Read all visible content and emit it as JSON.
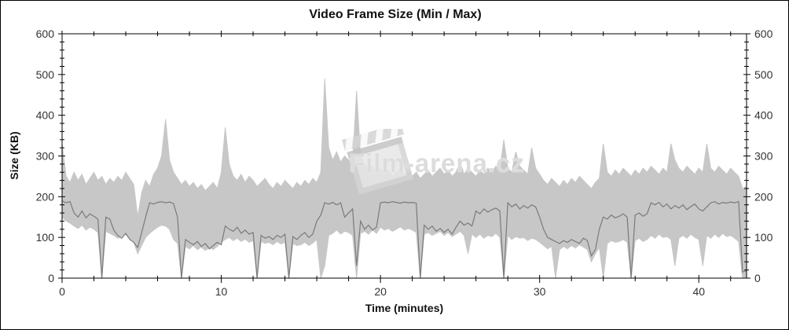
{
  "watermark": {
    "text": "Film-arena.cz"
  },
  "chart_data": {
    "type": "area",
    "title": "Video Frame Size (Min / Max)",
    "xlabel": "Time (minutes)",
    "ylabel": "Size (KB)",
    "xlim": [
      0,
      43
    ],
    "ylim": [
      0,
      600
    ],
    "x_major_tick_step": 10,
    "x_minor_tick_step": 2,
    "y_major_tick_step": 100,
    "y_minor_tick_step": 20,
    "x_tick_labels": [
      "0",
      "10",
      "20",
      "30",
      "40"
    ],
    "y_tick_labels_left": [
      "0",
      "100",
      "200",
      "300",
      "400",
      "500",
      "600"
    ],
    "y_tick_labels_right": [
      "0",
      "100",
      "200",
      "300",
      "400",
      "500",
      "600"
    ],
    "grid": "off",
    "legend": "none",
    "colors": {
      "max_band": "#c7c7c7",
      "min_line": "#7a7a7a",
      "axis": "#000000",
      "tick_text": "#333333",
      "background": "#ffffff",
      "watermark": "#dcdcdc"
    },
    "x_start": 0,
    "x_step": 0.25,
    "series": [
      {
        "name": "Max frame size",
        "type": "band",
        "upper": [
          330,
          250,
          235,
          260,
          240,
          255,
          230,
          245,
          260,
          240,
          250,
          230,
          245,
          235,
          250,
          240,
          260,
          245,
          230,
          150,
          210,
          240,
          225,
          255,
          270,
          300,
          390,
          290,
          260,
          245,
          230,
          240,
          225,
          235,
          220,
          230,
          215,
          225,
          235,
          220,
          260,
          370,
          280,
          250,
          240,
          255,
          235,
          250,
          240,
          225,
          235,
          245,
          230,
          220,
          235,
          225,
          240,
          230,
          220,
          235,
          225,
          240,
          230,
          245,
          235,
          260,
          490,
          320,
          290,
          310,
          285,
          300,
          290,
          280,
          460,
          300,
          280,
          265,
          275,
          260,
          270,
          255,
          265,
          250,
          260,
          270,
          255,
          265,
          250,
          260,
          245,
          255,
          265,
          250,
          260,
          270,
          255,
          265,
          250,
          260,
          285,
          255,
          270,
          260,
          250,
          265,
          255,
          270,
          260,
          275,
          265,
          340,
          270,
          260,
          310,
          275,
          265,
          255,
          320,
          270,
          255,
          240,
          230,
          245,
          235,
          225,
          240,
          230,
          245,
          235,
          250,
          240,
          230,
          220,
          235,
          245,
          330,
          260,
          250,
          265,
          255,
          270,
          260,
          250,
          265,
          255,
          270,
          260,
          275,
          265,
          255,
          270,
          260,
          330,
          290,
          270,
          260,
          275,
          265,
          255,
          270,
          260,
          330,
          270,
          260,
          275,
          265,
          255,
          270,
          260,
          250,
          220,
          225
        ],
        "lower": [
          150,
          140,
          135,
          128,
          122,
          130,
          118,
          125,
          120,
          112,
          0,
          115,
          110,
          105,
          98,
          102,
          108,
          96,
          88,
          60,
          80,
          100,
          110,
          118,
          125,
          130,
          128,
          120,
          95,
          85,
          0,
          78,
          72,
          80,
          70,
          76,
          68,
          75,
          70,
          78,
          88,
          95,
          100,
          92,
          98,
          90,
          96,
          88,
          92,
          0,
          90,
          85,
          88,
          82,
          90,
          84,
          88,
          0,
          85,
          80,
          82,
          88,
          80,
          86,
          95,
          0,
          30,
          105,
          110,
          118,
          108,
          115,
          112,
          105,
          0,
          110,
          115,
          108,
          118,
          110,
          125,
          118,
          122,
          115,
          120,
          126,
          118,
          122,
          118,
          112,
          0,
          108,
          112,
          105,
          110,
          115,
          105,
          112,
          102,
          108,
          115,
          105,
          60,
          108,
          100,
          108,
          98,
          105,
          102,
          110,
          100,
          0,
          105,
          95,
          102,
          98,
          100,
          92,
          98,
          95,
          88,
          80,
          72,
          78,
          0,
          70,
          78,
          72,
          80,
          74,
          82,
          76,
          70,
          40,
          60,
          75,
          0,
          85,
          92,
          88,
          90,
          95,
          88,
          0,
          92,
          98,
          90,
          95,
          105,
          98,
          108,
          100,
          102,
          95,
          30,
          98,
          105,
          98,
          108,
          100,
          95,
          30,
          105,
          98,
          108,
          100,
          110,
          102,
          105,
          98,
          90,
          0,
          0
        ]
      },
      {
        "name": "Min frame size",
        "type": "line",
        "values": [
          190,
          185,
          188,
          160,
          150,
          165,
          148,
          158,
          152,
          145,
          0,
          150,
          145,
          118,
          105,
          98,
          110,
          95,
          88,
          75,
          112,
          150,
          185,
          182,
          186,
          188,
          185,
          187,
          183,
          150,
          0,
          95,
          88,
          82,
          90,
          78,
          85,
          72,
          80,
          88,
          82,
          128,
          120,
          115,
          125,
          110,
          118,
          108,
          112,
          0,
          105,
          98,
          102,
          95,
          105,
          100,
          108,
          0,
          102,
          95,
          105,
          112,
          100,
          108,
          140,
          155,
          185,
          182,
          186,
          180,
          185,
          150,
          160,
          170,
          30,
          140,
          120,
          130,
          118,
          125,
          185,
          187,
          185,
          188,
          186,
          184,
          187,
          185,
          186,
          184,
          0,
          130,
          120,
          128,
          115,
          122,
          112,
          120,
          108,
          125,
          140,
          130,
          135,
          128,
          165,
          158,
          170,
          162,
          168,
          172,
          165,
          0,
          185,
          175,
          182,
          170,
          178,
          172,
          180,
          175,
          150,
          120,
          100,
          95,
          90,
          85,
          92,
          88,
          95,
          90,
          85,
          98,
          92,
          55,
          70,
          120,
          150,
          145,
          155,
          148,
          152,
          158,
          150,
          0,
          155,
          160,
          152,
          158,
          185,
          180,
          186,
          175,
          182,
          170,
          178,
          172,
          180,
          168,
          176,
          182,
          170,
          165,
          175,
          185,
          188,
          182,
          186,
          184,
          187,
          185,
          188,
          15,
          18
        ]
      }
    ]
  }
}
